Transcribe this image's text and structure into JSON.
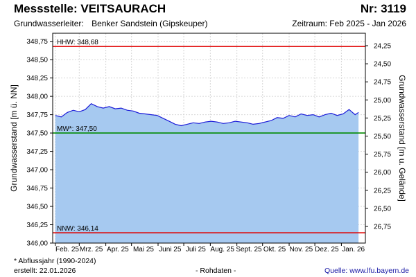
{
  "header": {
    "title": "Messstelle: VEITSAURACH",
    "number": "Nr: 3119",
    "aquifer_label": "Grundwasserleiter:",
    "aquifer_value": "Benker Sandstein (Gipskeuper)",
    "period": "Zeitraum: Feb 2025 - Jan 2026"
  },
  "footer": {
    "note": "* Abflussjahr (1990-2024)",
    "created": "erstellt:  22.01.2026",
    "status": "- Rohdaten -",
    "source": "Quelle:  www.lfu.bayern.de"
  },
  "chart_data": {
    "type": "area",
    "ylabel": "Grundwasserstand [m ü. NN]",
    "y2label": "Grundwasserstand [m u. Gelände]",
    "ylim": [
      346.0,
      348.86
    ],
    "y2lim": [
      24.25,
      26.75
    ],
    "yticks": [
      "348,75",
      "348,50",
      "348,25",
      "348,00",
      "347,75",
      "347,50",
      "347,25",
      "347,00",
      "346,75",
      "346,50",
      "346,25",
      "346,00"
    ],
    "ytick_values": [
      348.75,
      348.5,
      348.25,
      348.0,
      347.75,
      347.5,
      347.25,
      347.0,
      346.75,
      346.5,
      346.25,
      346.0
    ],
    "y2ticks": [
      "24,25",
      "24,50",
      "24,75",
      "25,00",
      "25,25",
      "25,50",
      "25,75",
      "26,00",
      "26,25",
      "26,50",
      "26,75"
    ],
    "y2tick_values": [
      24.25,
      24.5,
      24.75,
      25.0,
      25.25,
      25.5,
      25.75,
      26.0,
      26.25,
      26.5,
      26.75
    ],
    "xticks": [
      "Feb. 25",
      "Mrz. 25",
      "Apr. 25",
      "Mai 25",
      "Juni 25",
      "Juli 25",
      "Aug. 25",
      "Sept. 25",
      "Okt. 25",
      "Nov. 25",
      "Dez. 25",
      "Jan. 26"
    ],
    "reference_lines": [
      {
        "label": "HHW: 348,68",
        "value": 348.68,
        "color": "#e00000"
      },
      {
        "label": "MW*: 347,50",
        "value": 347.5,
        "color": "#008a00"
      },
      {
        "label": "NNW: 346,14",
        "value": 346.14,
        "color": "#e00000"
      }
    ],
    "series": [
      {
        "x": [
          "2025-02-01",
          "2025-02-08",
          "2025-02-15",
          "2025-02-22",
          "2025-03-01",
          "2025-03-08",
          "2025-03-15",
          "2025-03-22",
          "2025-03-29",
          "2025-04-05",
          "2025-04-12",
          "2025-04-19",
          "2025-04-26",
          "2025-05-03",
          "2025-05-10",
          "2025-05-17",
          "2025-05-24",
          "2025-05-31",
          "2025-06-07",
          "2025-06-14",
          "2025-06-21",
          "2025-06-28",
          "2025-07-05",
          "2025-07-12",
          "2025-07-19",
          "2025-07-26",
          "2025-08-02",
          "2025-08-09",
          "2025-08-16",
          "2025-08-23",
          "2025-08-30",
          "2025-09-06",
          "2025-09-13",
          "2025-09-20",
          "2025-09-27",
          "2025-10-04",
          "2025-10-11",
          "2025-10-18",
          "2025-10-25",
          "2025-11-01",
          "2025-11-08",
          "2025-11-15",
          "2025-11-22",
          "2025-11-29",
          "2025-12-06",
          "2025-12-13",
          "2025-12-20",
          "2025-12-27",
          "2026-01-03",
          "2026-01-10",
          "2026-01-17",
          "2026-01-21"
        ],
        "values": [
          347.74,
          347.72,
          347.78,
          347.81,
          347.79,
          347.82,
          347.9,
          347.86,
          347.84,
          347.86,
          347.83,
          347.84,
          347.81,
          347.8,
          347.77,
          347.76,
          347.75,
          347.74,
          347.7,
          347.66,
          347.62,
          347.6,
          347.62,
          347.64,
          347.63,
          347.65,
          347.66,
          347.65,
          347.63,
          347.64,
          347.66,
          347.65,
          347.64,
          347.62,
          347.63,
          347.65,
          347.67,
          347.71,
          347.7,
          347.74,
          347.72,
          347.76,
          347.74,
          347.75,
          347.72,
          347.75,
          347.77,
          347.74,
          347.76,
          347.82,
          347.75,
          347.78
        ],
        "color": "#1a1ad8",
        "fill": "#a6c9f0"
      }
    ]
  }
}
